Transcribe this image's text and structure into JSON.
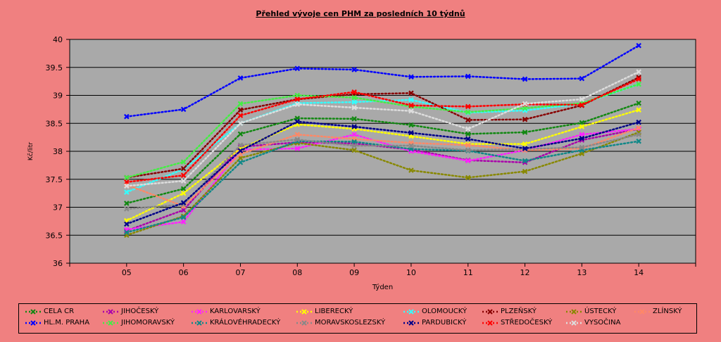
{
  "chart_data": {
    "type": "line",
    "title": "Přehled vývoje cen PHM  za posledních 10 týdnů",
    "xlabel": "Týden",
    "ylabel": "Kč/litr",
    "categories": [
      "05",
      "06",
      "07",
      "08",
      "09",
      "10",
      "11",
      "12",
      "13",
      "14"
    ],
    "ylim": [
      36,
      40
    ],
    "yticks": [
      "36",
      "36.5",
      "37",
      "37.5",
      "38",
      "38.5",
      "39",
      "39.5",
      "40"
    ],
    "grid": "horizontal",
    "legend_position": "bottom",
    "series": [
      {
        "name": "CELA CR",
        "color": "#118811",
        "values": [
          37.07,
          37.33,
          38.31,
          38.59,
          38.58,
          38.47,
          38.31,
          38.34,
          38.51,
          38.86
        ]
      },
      {
        "name": "JIHOČESKÝ",
        "color": "#aa00aa",
        "values": [
          36.58,
          36.95,
          38.08,
          38.16,
          38.14,
          38.03,
          37.84,
          37.8,
          38.2,
          38.4
        ]
      },
      {
        "name": "KARLOVARSKÝ",
        "color": "#ff22ff",
        "values": [
          36.6,
          36.74,
          38.03,
          38.05,
          38.3,
          38.0,
          37.83,
          38.02,
          38.3,
          38.4
        ]
      },
      {
        "name": "LIBERECKÝ",
        "color": "#ffff00",
        "values": [
          36.76,
          37.25,
          38.05,
          38.48,
          38.4,
          38.27,
          38.13,
          38.13,
          38.44,
          38.74
        ]
      },
      {
        "name": "OLOMOUCKÝ",
        "color": "#33ffff",
        "values": [
          37.27,
          37.68,
          38.5,
          38.86,
          38.88,
          38.92,
          38.69,
          38.73,
          38.85,
          39.2
        ]
      },
      {
        "name": "PLZEŇSKÝ",
        "color": "#880000",
        "values": [
          37.53,
          37.69,
          38.74,
          38.93,
          39.02,
          39.04,
          38.56,
          38.57,
          38.82,
          39.32
        ]
      },
      {
        "name": "ÚSTECKÝ",
        "color": "#888800",
        "values": [
          36.5,
          36.84,
          37.88,
          38.15,
          38.02,
          37.66,
          37.53,
          37.64,
          37.96,
          38.34
        ]
      },
      {
        "name": "ZLÍNSKÝ",
        "color": "#ff8866",
        "values": [
          37.4,
          37.02,
          37.95,
          38.3,
          38.22,
          38.15,
          38.11,
          38.02,
          38.05,
          38.42
        ]
      },
      {
        "name": "HL.M. PRAHA",
        "color": "#0000ff",
        "values": [
          38.62,
          38.75,
          39.31,
          39.48,
          39.46,
          39.33,
          39.34,
          39.29,
          39.3,
          39.89
        ]
      },
      {
        "name": "JIHOMORAVSKÝ",
        "color": "#44ee44",
        "values": [
          37.53,
          37.81,
          38.85,
          39.0,
          38.96,
          38.8,
          38.7,
          38.77,
          38.86,
          39.2
        ]
      },
      {
        "name": "KRÁLOVÉHRADECKÝ",
        "color": "#118888",
        "values": [
          36.55,
          36.82,
          37.8,
          38.18,
          38.17,
          38.04,
          38.01,
          37.83,
          38.02,
          38.18
        ]
      },
      {
        "name": "MORAVSKOSLEZSKÝ",
        "color": "#888888",
        "values": [
          36.97,
          37.05,
          38.11,
          38.21,
          38.1,
          38.1,
          38.02,
          38.04,
          38.07,
          38.3
        ]
      },
      {
        "name": "PARDUBICKÝ",
        "color": "#000088",
        "values": [
          36.7,
          37.08,
          38.01,
          38.53,
          38.44,
          38.33,
          38.22,
          38.05,
          38.23,
          38.52
        ]
      },
      {
        "name": "STŘEDOČESKÝ",
        "color": "#ff0000",
        "values": [
          37.45,
          37.57,
          38.64,
          38.93,
          39.06,
          38.82,
          38.8,
          38.84,
          38.83,
          39.29
        ]
      },
      {
        "name": "VYSOČINA",
        "color": "#dddddd",
        "values": [
          37.38,
          37.47,
          38.5,
          38.84,
          38.78,
          38.72,
          38.4,
          38.85,
          38.93,
          39.42
        ]
      }
    ]
  }
}
